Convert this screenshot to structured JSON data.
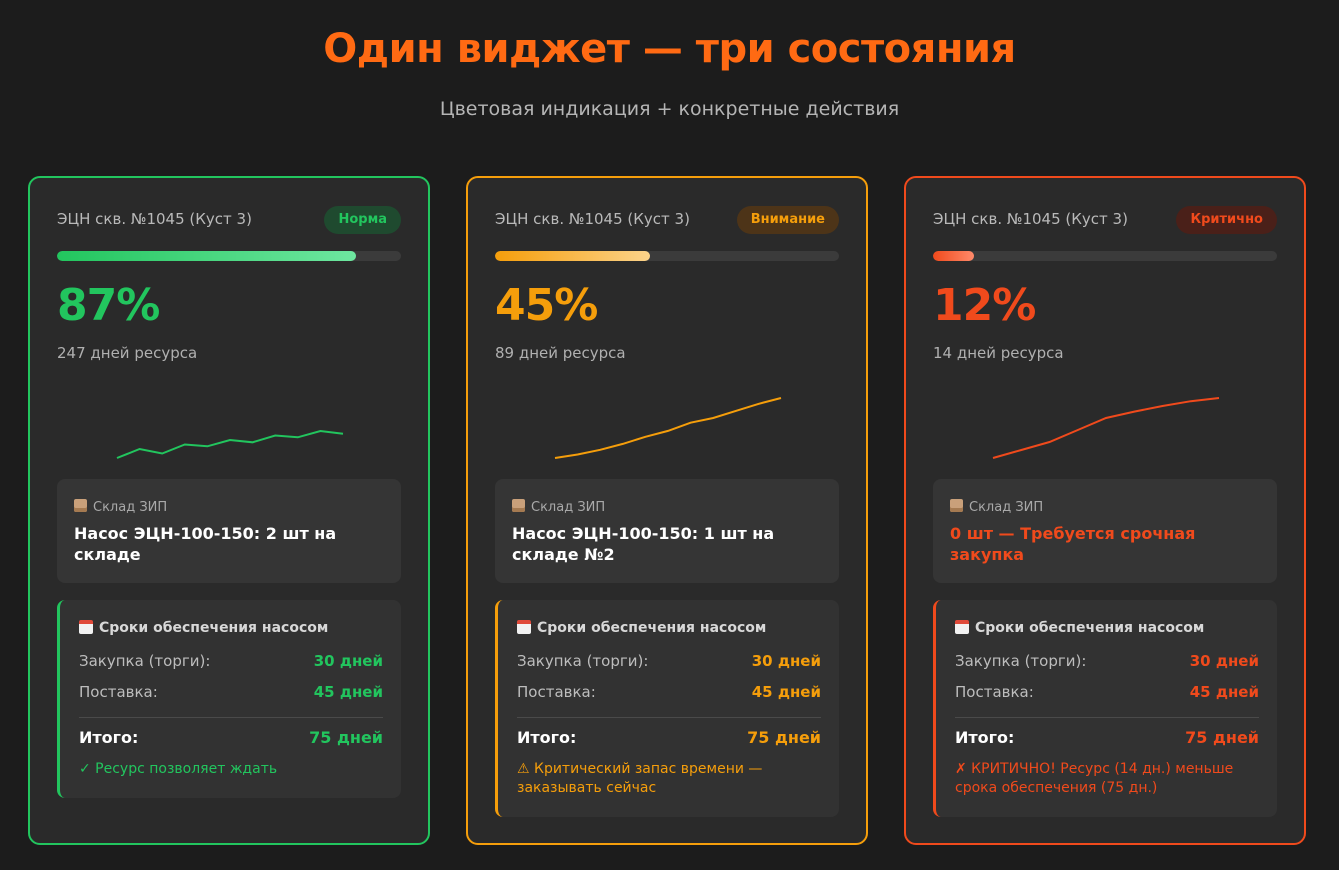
{
  "header": {
    "title": "Один виджет — три состояния",
    "subtitle": "Цветовая индикация + конкретные действия"
  },
  "cards": [
    {
      "well": "ЭЦН скв. №1045 (Куст 3)",
      "status": "Норма",
      "accent": "#22c55e",
      "accent_light": "#6ee7a0",
      "badge_bg": "#1f4a2f",
      "percent": "87%",
      "resource_fraction": 0.87,
      "days": "247 дней ресурса",
      "trend": [
        2,
        4,
        3,
        5,
        4.6,
        6,
        5.5,
        7,
        6.6,
        8,
        7.4
      ],
      "stock_label": "Склад ЗИП",
      "stock_value": "Насос ЭЦН-100-150: 2 шт на складе",
      "stock_color": "#ffffff",
      "supply_title": "Сроки обеспечения насосом",
      "purchase_label": "Закупка (торги):",
      "purchase_value": "30 дней",
      "delivery_label": "Поставка:",
      "delivery_value": "45 дней",
      "total_label": "Итого:",
      "total_value": "75 дней",
      "verdict": "✓ Ресурс позволяет ждать"
    },
    {
      "well": "ЭЦН скв. №1045 (Куст 3)",
      "status": "Внимание",
      "accent": "#f59e0b",
      "accent_light": "#fcd38a",
      "badge_bg": "#4d3418",
      "percent": "45%",
      "resource_fraction": 0.45,
      "days": "89 дней ресурса",
      "trend": [
        2,
        2.6,
        3.4,
        4.4,
        5.6,
        6.6,
        8,
        8.8,
        10,
        11.2,
        12.2
      ],
      "stock_label": "Склад ЗИП",
      "stock_value": "Насос ЭЦН-100-150: 1 шт на складе №2",
      "stock_color": "#ffffff",
      "supply_title": "Сроки обеспечения насосом",
      "purchase_label": "Закупка (торги):",
      "purchase_value": "30 дней",
      "delivery_label": "Поставка:",
      "delivery_value": "45 дней",
      "total_label": "Итого:",
      "total_value": "75 дней",
      "verdict": "⚠ Критический запас времени — заказывать сейчас"
    },
    {
      "well": "ЭЦН скв. №1045 (Куст 3)",
      "status": "Критично",
      "accent": "#f04a1c",
      "accent_light": "#ff8a6a",
      "badge_bg": "#4a2019",
      "percent": "12%",
      "resource_fraction": 0.12,
      "days": "14 дней ресурса",
      "trend": [
        2,
        4,
        6,
        9,
        12,
        13.6,
        15,
        16.2,
        17
      ],
      "stock_label": "Склад ЗИП",
      "stock_value": "0 шт — Требуется срочная закупка",
      "stock_color": "#f04a1c",
      "supply_title": "Сроки обеспечения насосом",
      "purchase_label": "Закупка (торги):",
      "purchase_value": "30 дней",
      "delivery_label": "Поставка:",
      "delivery_value": "45 дней",
      "total_label": "Итого:",
      "total_value": "75 дней",
      "verdict": "✗ КРИТИЧНО! Ресурс (14 дн.) меньше срока обеспечения (75 дн.)"
    }
  ]
}
